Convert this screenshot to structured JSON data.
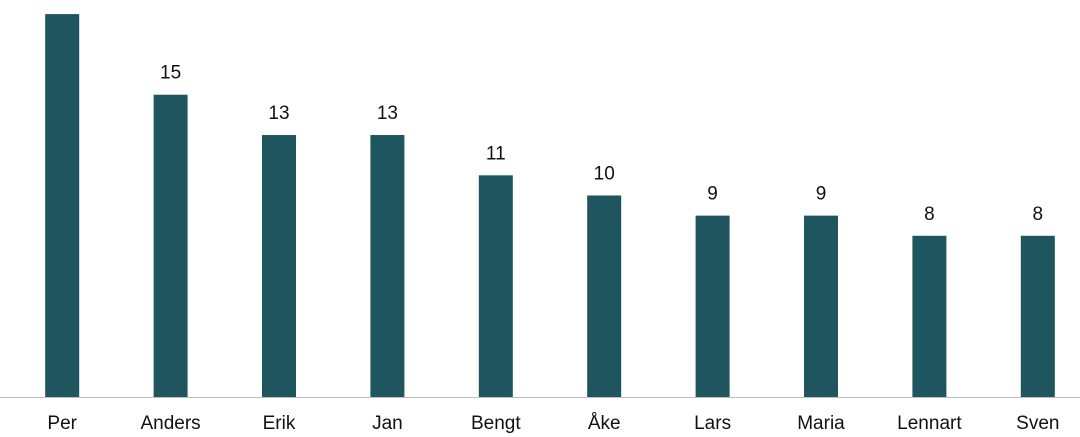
{
  "chart_data": {
    "type": "bar",
    "categories": [
      "Per",
      "Anders",
      "Erik",
      "Jan",
      "Bengt",
      "Åke",
      "Lars",
      "Maria",
      "Lennart",
      "Sven"
    ],
    "values": [
      19,
      15,
      13,
      13,
      11,
      10,
      9,
      9,
      8,
      8
    ],
    "color": "#1f555e",
    "ylim": [
      0,
      19.7
    ]
  }
}
